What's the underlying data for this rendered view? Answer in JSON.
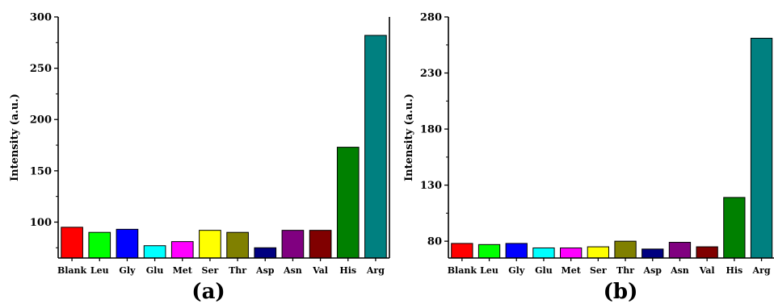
{
  "chart_data": [
    {
      "type": "bar",
      "panel_label": "(a)",
      "ylabel": "Intensity (a.u.)",
      "ylim": [
        65,
        300
      ],
      "yticks": [
        100,
        150,
        200,
        250,
        300
      ],
      "categories": [
        "Blank",
        "Leu",
        "Gly",
        "Glu",
        "Met",
        "Ser",
        "Thr",
        "Asp",
        "Asn",
        "Val",
        "His",
        "Arg"
      ],
      "values": [
        95,
        90,
        93,
        77,
        81,
        92,
        90,
        75,
        92,
        92,
        173,
        282
      ],
      "colors": [
        "#ff0000",
        "#00ff00",
        "#0000ff",
        "#00ffff",
        "#ff00ff",
        "#ffff00",
        "#808000",
        "#000080",
        "#800080",
        "#800000",
        "#008000",
        "#008080"
      ]
    },
    {
      "type": "bar",
      "panel_label": "(b)",
      "ylabel": "Intensity (a.u.)",
      "ylim": [
        65,
        280
      ],
      "yticks": [
        80,
        130,
        180,
        230,
        280
      ],
      "categories": [
        "Blank",
        "Leu",
        "Gly",
        "Glu",
        "Met",
        "Ser",
        "Thr",
        "Asp",
        "Asn",
        "Val",
        "His",
        "Arg"
      ],
      "values": [
        78,
        77,
        78,
        74,
        74,
        75,
        80,
        73,
        79,
        75,
        119,
        261
      ],
      "colors": [
        "#ff0000",
        "#00ff00",
        "#0000ff",
        "#00ffff",
        "#ff00ff",
        "#ffff00",
        "#808000",
        "#000080",
        "#800080",
        "#800000",
        "#008000",
        "#008080"
      ]
    }
  ]
}
